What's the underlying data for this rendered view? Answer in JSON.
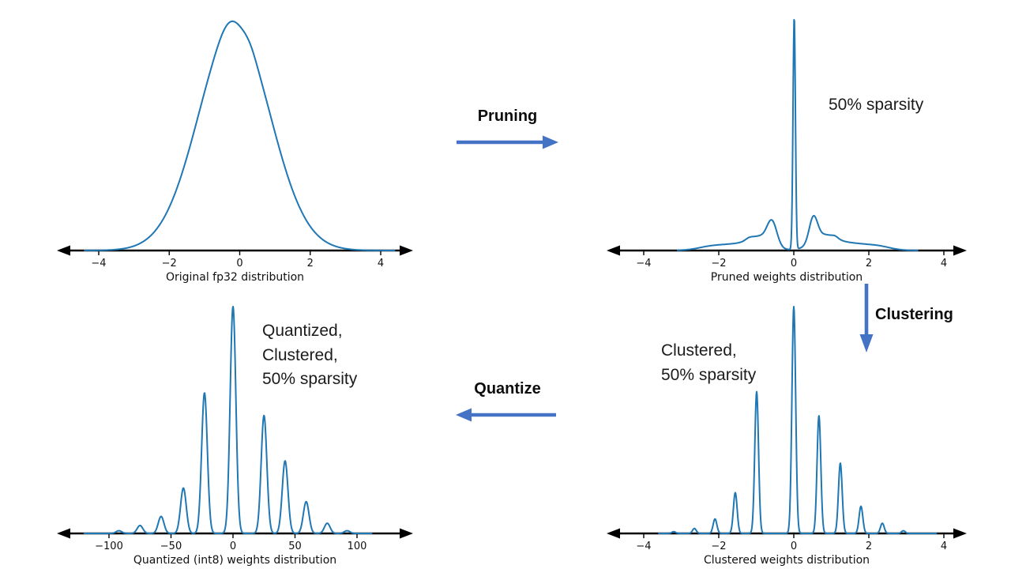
{
  "page": {
    "background": "#ffffff"
  },
  "colors": {
    "curve": "#1f77b4",
    "process_arrow": "#4472c4",
    "axis": "#000000",
    "text": "#1b1b1b"
  },
  "process_labels": {
    "pruning": "Pruning",
    "clustering": "Clustering",
    "quantize": "Quantize"
  },
  "annotations": {
    "pruned_note": "50% sparsity",
    "clustered_note_line1": "Clustered,",
    "clustered_note_line2": "50% sparsity",
    "quantized_note_line1": "Quantized,",
    "quantized_note_line2": "Clustered,",
    "quantized_note_line3": "50% sparsity"
  },
  "chart_data": [
    {
      "id": "original",
      "type": "line",
      "title": "",
      "xlabel": "Original fp32 distribution",
      "xtick_values": [
        -4,
        -2,
        0,
        2,
        4
      ],
      "xtick_labels": [
        "−4",
        "−2",
        "0",
        "2",
        "4"
      ],
      "xlim": [
        -4.4,
        4.4
      ],
      "ylim": [
        0,
        1
      ],
      "grid": false,
      "legend": false,
      "components": [
        {
          "mu": -0.15,
          "sigma": 1.02,
          "h": 0.97
        },
        {
          "mu": -0.33,
          "sigma": 0.25,
          "h": 0.03
        },
        {
          "mu": 0.3,
          "sigma": 0.16,
          "h": 0.015
        }
      ]
    },
    {
      "id": "pruned",
      "type": "line",
      "title": "",
      "xlabel": "Pruned weights distribution",
      "xtick_values": [
        -4,
        -2,
        0,
        2,
        4
      ],
      "xtick_labels": [
        "−4",
        "−2",
        "0",
        "2",
        "4"
      ],
      "xlim": [
        -3.1,
        3.3
      ],
      "ylim": [
        0,
        1
      ],
      "grid": false,
      "legend": false,
      "components": [
        {
          "mu": 0.01,
          "sigma": 0.032,
          "h": 1.0
        },
        {
          "mu": -0.58,
          "sigma": 0.13,
          "h": 0.1
        },
        {
          "mu": -0.9,
          "sigma": 0.28,
          "h": 0.045
        },
        {
          "mu": -1.55,
          "sigma": 0.6,
          "h": 0.028
        },
        {
          "mu": -1.2,
          "sigma": 0.09,
          "h": 0.007
        },
        {
          "mu": -2.3,
          "sigma": 0.28,
          "h": 0.006
        },
        {
          "mu": 0.52,
          "sigma": 0.11,
          "h": 0.105
        },
        {
          "mu": 0.78,
          "sigma": 0.3,
          "h": 0.05
        },
        {
          "mu": 1.45,
          "sigma": 0.6,
          "h": 0.032
        },
        {
          "mu": 1.1,
          "sigma": 0.08,
          "h": 0.008
        },
        {
          "mu": 2.3,
          "sigma": 0.3,
          "h": 0.009
        }
      ]
    },
    {
      "id": "quantized",
      "type": "line",
      "title": "",
      "xlabel": "Quantized (int8) weights distribution",
      "xtick_values": [
        -100,
        -50,
        0,
        50,
        100
      ],
      "xtick_labels": [
        "−100",
        "−50",
        "0",
        "50",
        "100"
      ],
      "xlim": [
        -120,
        112
      ],
      "ylim": [
        0,
        1
      ],
      "grid": false,
      "legend": false,
      "spike_sigma": 2.3,
      "spikes": [
        {
          "x": -92,
          "h": 0.012
        },
        {
          "x": -75,
          "h": 0.035
        },
        {
          "x": -58,
          "h": 0.075
        },
        {
          "x": -40,
          "h": 0.2
        },
        {
          "x": -23,
          "h": 0.62
        },
        {
          "x": 0,
          "h": 1.0
        },
        {
          "x": 25,
          "h": 0.52
        },
        {
          "x": 42,
          "h": 0.32
        },
        {
          "x": 59,
          "h": 0.14
        },
        {
          "x": 76,
          "h": 0.045
        },
        {
          "x": 92,
          "h": 0.012
        }
      ]
    },
    {
      "id": "clustered",
      "type": "line",
      "title": "",
      "xlabel": "Clustered weights distribution",
      "xtick_values": [
        -4,
        -2,
        0,
        2,
        4
      ],
      "xtick_labels": [
        "−4",
        "−2",
        "0",
        "2",
        "4"
      ],
      "xlim": [
        -3.6,
        3.8
      ],
      "ylim": [
        0,
        1
      ],
      "grid": false,
      "legend": false,
      "spike_sigma": 0.05,
      "spikes": [
        {
          "x": -3.2,
          "h": 0.008
        },
        {
          "x": -2.65,
          "h": 0.022
        },
        {
          "x": -2.1,
          "h": 0.064
        },
        {
          "x": -1.56,
          "h": 0.18
        },
        {
          "x": -0.99,
          "h": 0.625
        },
        {
          "x": 0,
          "h": 1.0
        },
        {
          "x": 0.67,
          "h": 0.52
        },
        {
          "x": 1.24,
          "h": 0.31
        },
        {
          "x": 1.79,
          "h": 0.12
        },
        {
          "x": 2.36,
          "h": 0.045
        },
        {
          "x": 2.92,
          "h": 0.012
        }
      ]
    }
  ]
}
